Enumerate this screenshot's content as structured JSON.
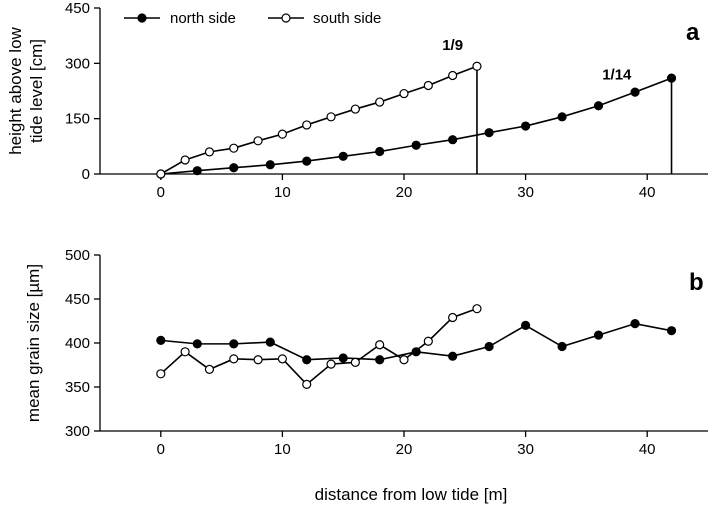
{
  "chart_data": [
    {
      "type": "line",
      "panel_label": "a",
      "xlim": [
        -5,
        45
      ],
      "ylim": [
        0,
        450
      ],
      "xticks": [
        0,
        10,
        20,
        30,
        40
      ],
      "yticks": [
        0,
        150,
        300,
        450
      ],
      "xlabel": "",
      "ylabel": [
        "height above low",
        "tide level [cm]"
      ],
      "legend": {
        "placement": "top-left",
        "entries": [
          "north side",
          "south side"
        ]
      },
      "series": [
        {
          "name": "north side",
          "marker": "filled-circle",
          "x": [
            0,
            3,
            6,
            9,
            12,
            15,
            18,
            21,
            24,
            27,
            30,
            33,
            36,
            39,
            42
          ],
          "y": [
            0,
            9,
            17,
            25,
            35,
            48,
            61,
            78,
            93,
            112,
            130,
            155,
            185,
            222,
            260
          ]
        },
        {
          "name": "south side",
          "marker": "open-circle",
          "x": [
            0,
            2,
            4,
            6,
            8,
            10,
            12,
            14,
            16,
            18,
            20,
            22,
            24,
            26
          ],
          "y": [
            0,
            38,
            60,
            70,
            90,
            108,
            133,
            155,
            176,
            195,
            218,
            240,
            267,
            292
          ]
        }
      ],
      "verticals": [
        {
          "x": 26,
          "y": 292
        },
        {
          "x": 42,
          "y": 260
        }
      ],
      "annotations": [
        {
          "text": "1/9",
          "x": 24,
          "y": 350
        },
        {
          "text": "1/14",
          "x": 37.5,
          "y": 270
        }
      ]
    },
    {
      "type": "line",
      "panel_label": "b",
      "xlim": [
        -5,
        45
      ],
      "ylim": [
        300,
        500
      ],
      "xticks": [
        0,
        10,
        20,
        30,
        40
      ],
      "yticks": [
        300,
        350,
        400,
        450,
        500
      ],
      "xlabel": "distance from low tide [m]",
      "ylabel": "mean grain size [µm]",
      "series": [
        {
          "name": "north side",
          "marker": "filled-circle",
          "x": [
            0,
            3,
            6,
            9,
            12,
            15,
            18,
            21,
            24,
            27,
            30,
            33,
            36,
            39,
            42
          ],
          "y": [
            403,
            399,
            399,
            401,
            381,
            383,
            381,
            390,
            385,
            396,
            420,
            396,
            409,
            422,
            414
          ]
        },
        {
          "name": "south side",
          "marker": "open-circle",
          "x": [
            0,
            2,
            4,
            6,
            8,
            10,
            12,
            14,
            16,
            18,
            20,
            22,
            24,
            26
          ],
          "y": [
            365,
            390,
            370,
            382,
            381,
            382,
            353,
            376,
            378,
            398,
            381,
            402,
            429,
            439
          ]
        }
      ]
    }
  ]
}
